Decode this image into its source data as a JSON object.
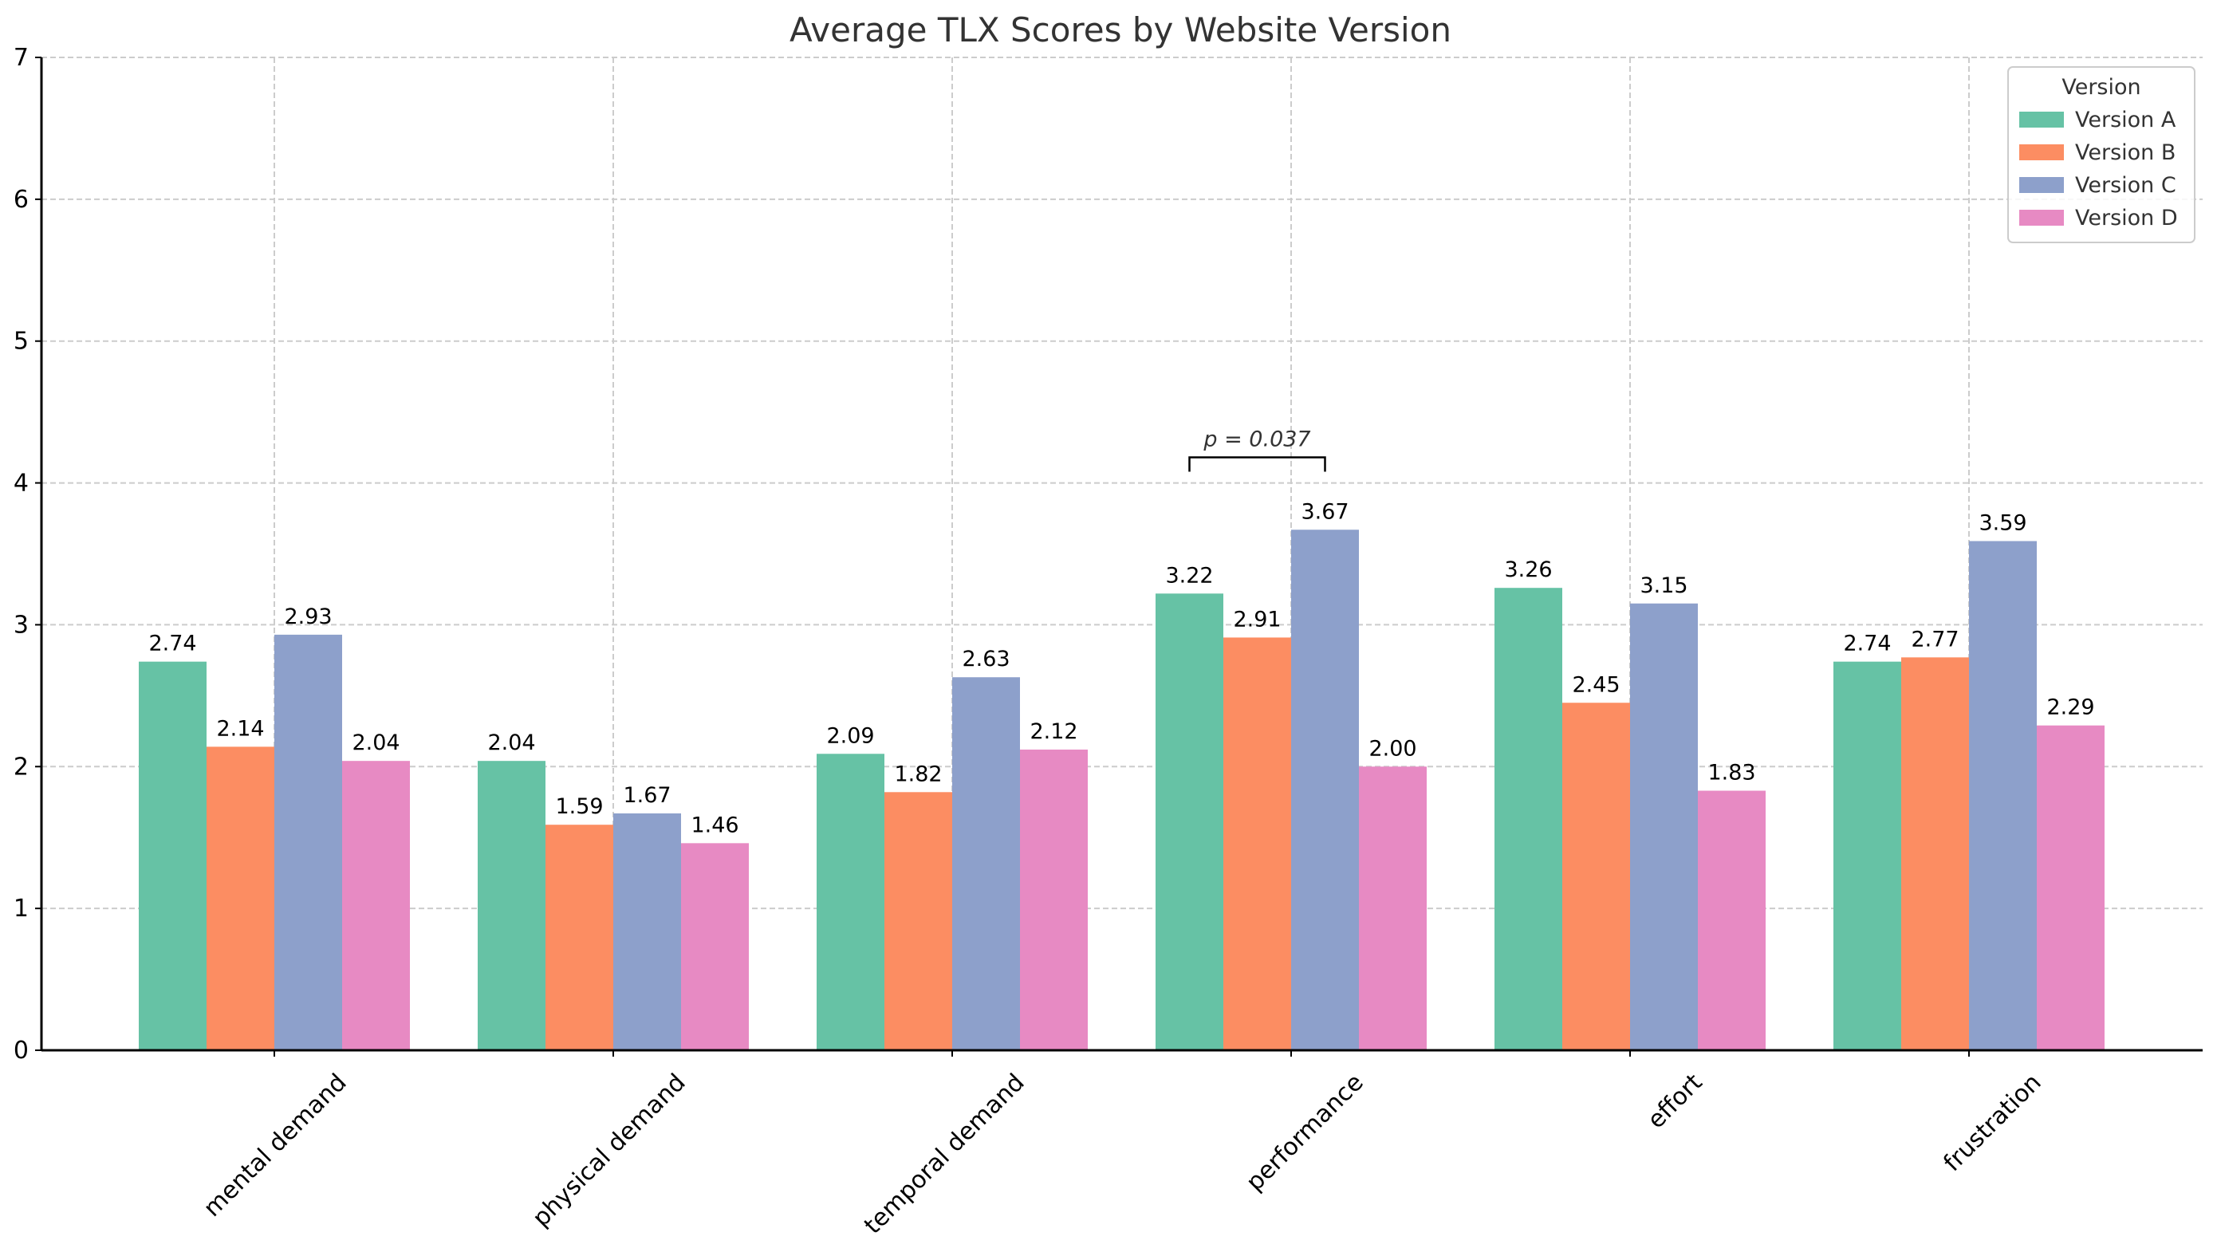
{
  "chart_data": {
    "type": "bar",
    "title": "Average TLX Scores by Website Version",
    "xlabel": "",
    "ylabel": "",
    "ylim": [
      0,
      7
    ],
    "yticks": [
      0,
      1,
      2,
      3,
      4,
      5,
      6,
      7
    ],
    "grid": true,
    "legend_title": "Version",
    "legend_placement": "top-right",
    "categories": [
      "mental demand",
      "physical demand",
      "temporal demand",
      "performance",
      "effort",
      "frustration"
    ],
    "series": [
      {
        "name": "Version A",
        "color": "#66c2a5",
        "values": [
          2.74,
          2.04,
          2.09,
          3.22,
          3.26,
          2.74
        ],
        "labels": [
          "2.74",
          "2.04",
          "2.09",
          "3.22",
          "3.26",
          "2.74"
        ]
      },
      {
        "name": "Version B",
        "color": "#fc8d62",
        "values": [
          2.14,
          1.59,
          1.82,
          2.91,
          2.45,
          2.77
        ],
        "labels": [
          "2.14",
          "1.59",
          "1.82",
          "2.91",
          "2.45",
          "2.77"
        ]
      },
      {
        "name": "Version C",
        "color": "#8da0cb",
        "values": [
          2.93,
          1.67,
          2.63,
          3.67,
          3.15,
          3.59
        ],
        "labels": [
          "2.93",
          "1.67",
          "2.63",
          "3.67",
          "3.15",
          "3.59"
        ]
      },
      {
        "name": "Version D",
        "color": "#e78ac3",
        "values": [
          2.04,
          1.46,
          2.12,
          2.0,
          1.83,
          2.29
        ],
        "labels": [
          "2.04",
          "1.46",
          "2.12",
          "2.00",
          "1.83",
          "2.29"
        ]
      }
    ],
    "annotations": [
      {
        "text": "p = 0.037",
        "category": "performance",
        "from_series": "Version A",
        "to_series": "Version C",
        "y": 4.18
      }
    ]
  }
}
